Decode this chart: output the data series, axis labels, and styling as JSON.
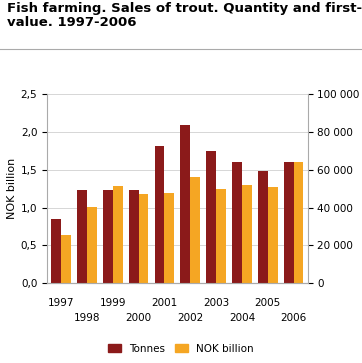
{
  "title_line1": "Fish farming. Sales of trout. Quantity and first-hand",
  "title_line2": "value. 1997-2006",
  "years": [
    1997,
    1998,
    1999,
    2000,
    2001,
    2002,
    2003,
    2004,
    2005,
    2006
  ],
  "tonnes_nok_scale": [
    0.85,
    1.23,
    1.24,
    1.24,
    1.82,
    2.1,
    1.75,
    1.6,
    1.49,
    1.6
  ],
  "nok_billion": [
    0.64,
    1.01,
    1.28,
    1.18,
    1.19,
    1.4,
    1.25,
    1.3,
    1.27,
    1.6
  ],
  "tonnes_color": "#8B1A1A",
  "nok_color": "#F5A623",
  "left_ylabel": "NOK billion",
  "right_ylabel": "Tonnes",
  "left_ylim": [
    0,
    2.5
  ],
  "right_ylim": [
    0,
    100000
  ],
  "left_yticks": [
    0.0,
    0.5,
    1.0,
    1.5,
    2.0,
    2.5
  ],
  "left_yticklabels": [
    "0,0",
    "0,5",
    "1,0",
    "1,5",
    "2,0",
    "2,5"
  ],
  "right_yticks": [
    0,
    20000,
    40000,
    60000,
    80000,
    100000
  ],
  "right_yticklabels": [
    "0",
    "20 000",
    "40 000",
    "60 000",
    "80 000",
    "100 000"
  ],
  "nok_to_tonnes": 40000,
  "background_color": "#ffffff",
  "grid_color": "#d0d0d0",
  "legend_labels": [
    "Tonnes",
    "NOK billion"
  ],
  "bar_width": 0.38,
  "title_fontsize": 9.5,
  "axis_label_fontsize": 8,
  "tick_fontsize": 7.5
}
